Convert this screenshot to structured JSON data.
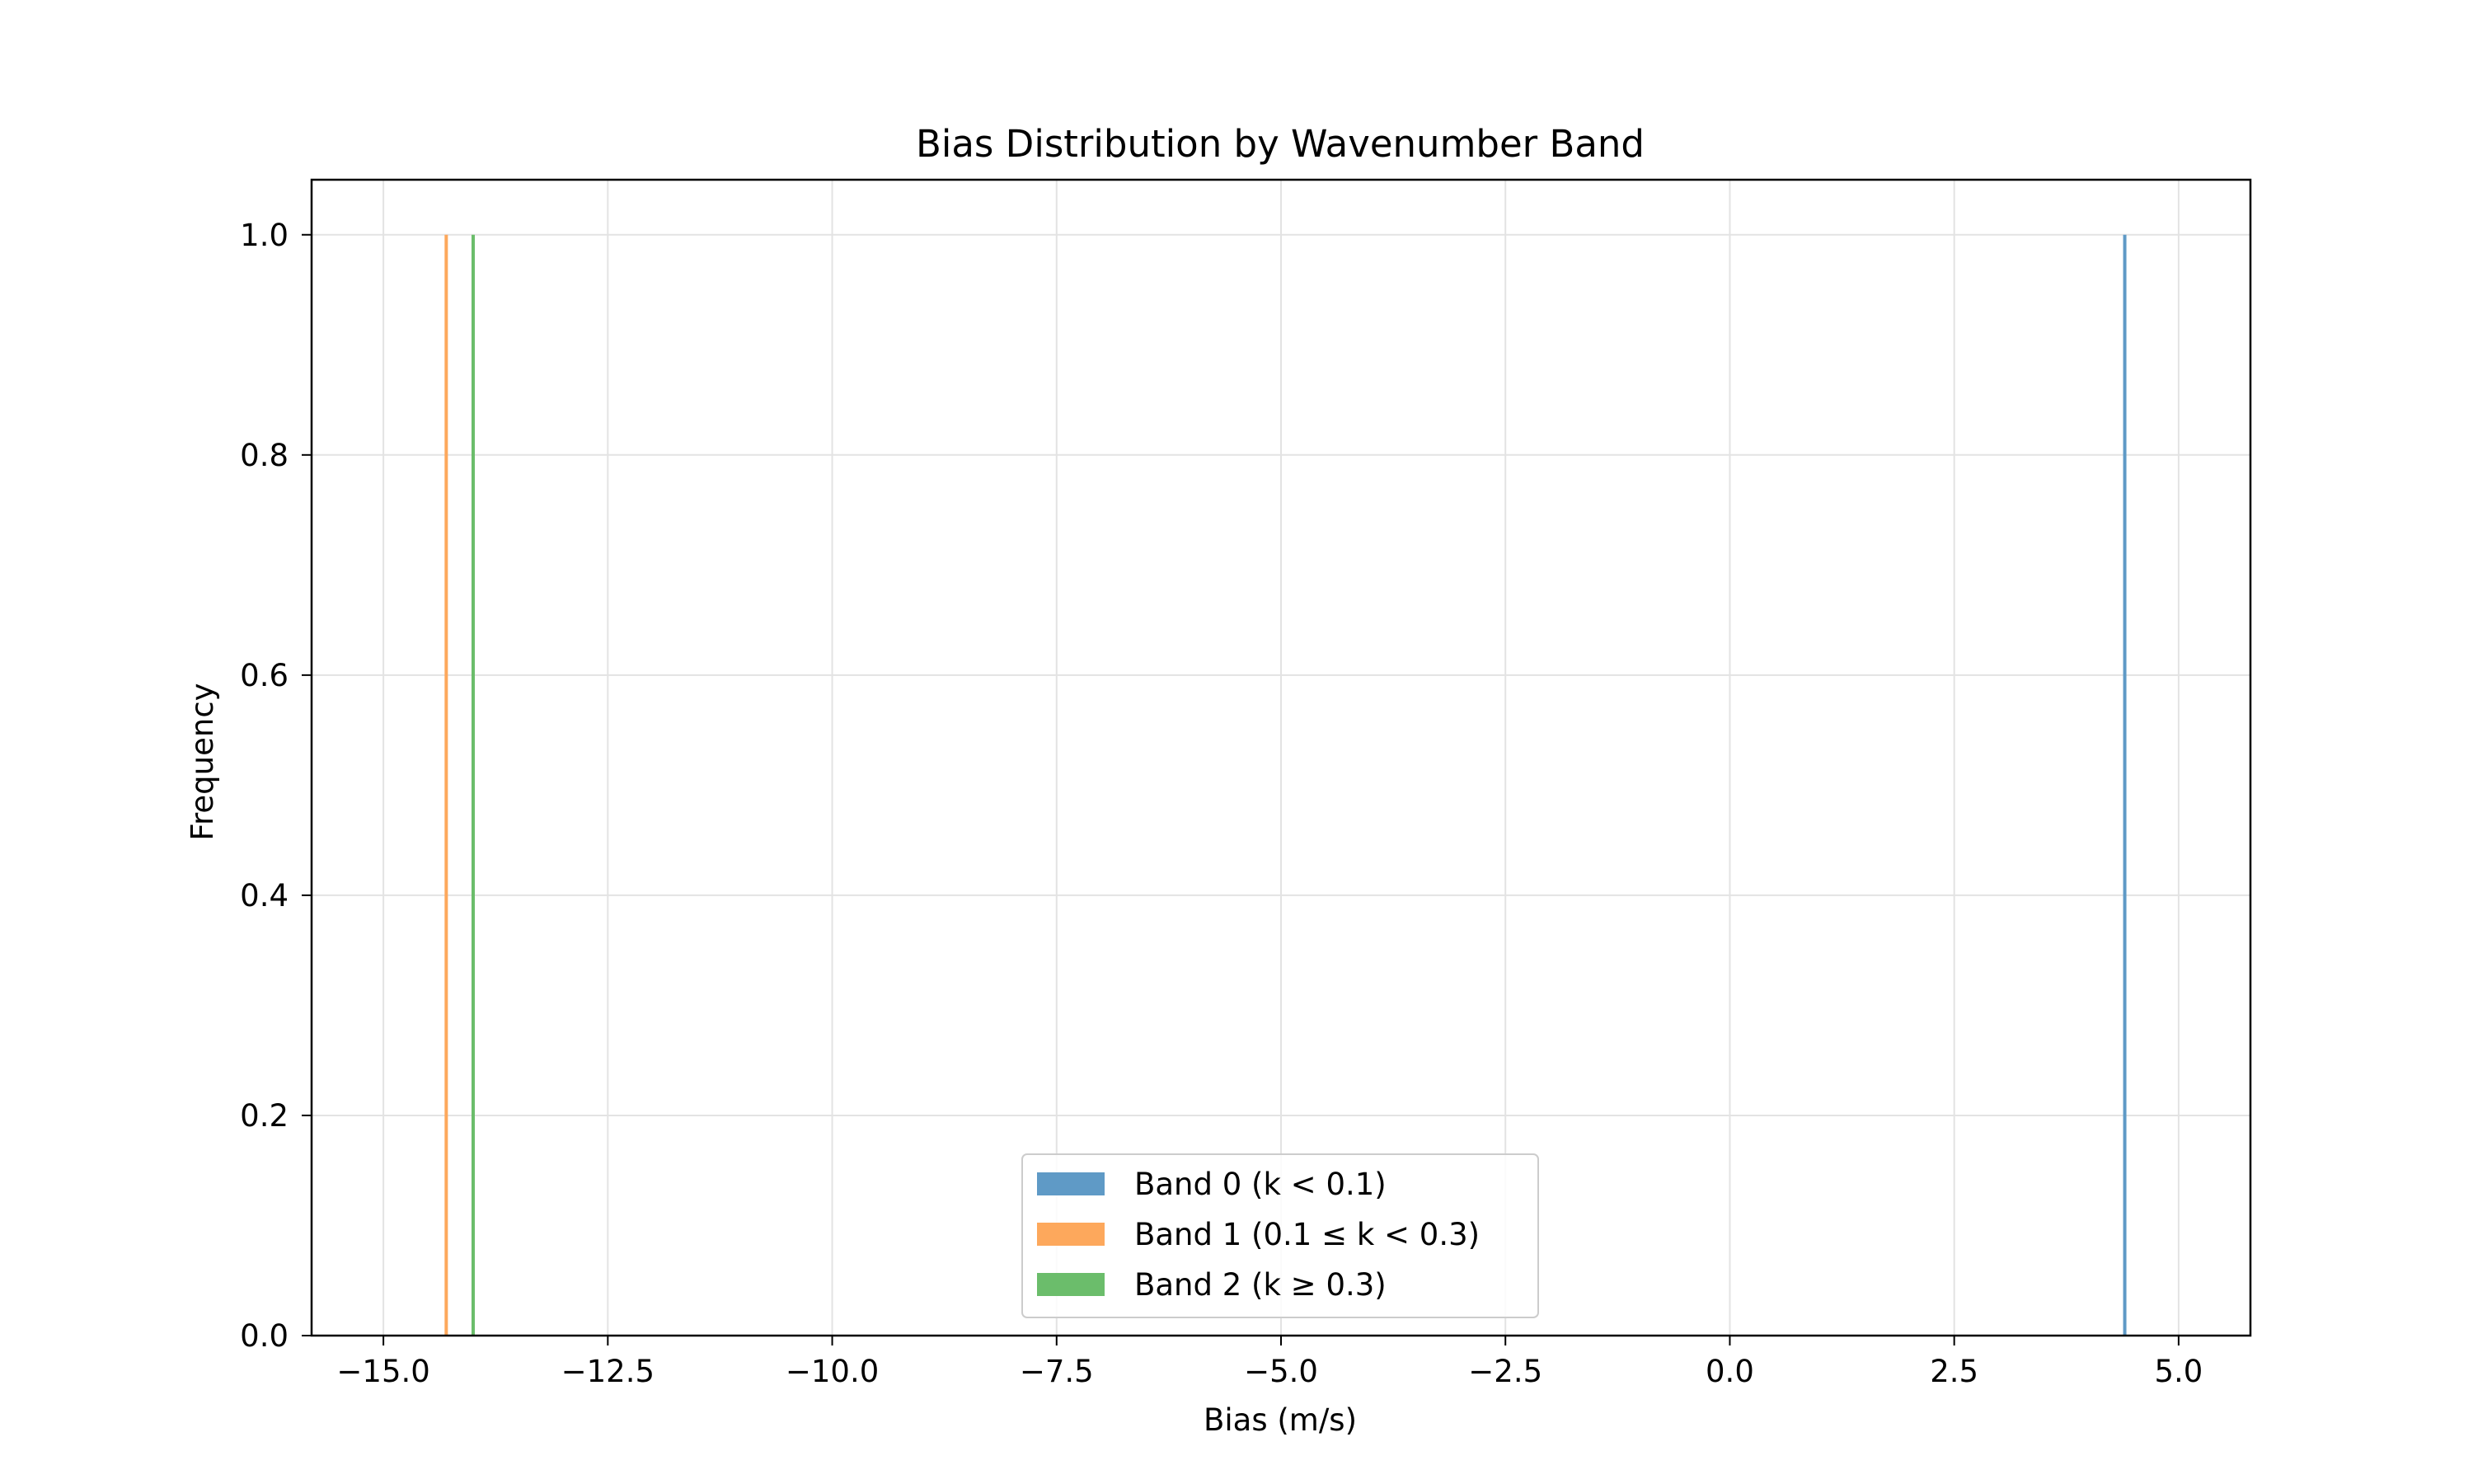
{
  "chart_data": {
    "type": "bar",
    "title": "Bias Distribution by Wavenumber Band",
    "xlabel": "Bias (m/s)",
    "ylabel": "Frequency",
    "xlim": [
      -15.8,
      5.8
    ],
    "ylim": [
      0.0,
      1.05
    ],
    "xticks": [
      {
        "value": -15.0,
        "label": "−15.0"
      },
      {
        "value": -12.5,
        "label": "−12.5"
      },
      {
        "value": -10.0,
        "label": "−10.0"
      },
      {
        "value": -7.5,
        "label": "−7.5"
      },
      {
        "value": -5.0,
        "label": "−5.0"
      },
      {
        "value": -2.5,
        "label": "−2.5"
      },
      {
        "value": 0.0,
        "label": "0.0"
      },
      {
        "value": 2.5,
        "label": "2.5"
      },
      {
        "value": 5.0,
        "label": "5.0"
      }
    ],
    "yticks": [
      {
        "value": 0.0,
        "label": "0.0"
      },
      {
        "value": 0.2,
        "label": "0.2"
      },
      {
        "value": 0.4,
        "label": "0.4"
      },
      {
        "value": 0.6,
        "label": "0.6"
      },
      {
        "value": 0.8,
        "label": "0.8"
      },
      {
        "value": 1.0,
        "label": "1.0"
      }
    ],
    "grid": true,
    "legend_position": "bottom-center",
    "series": [
      {
        "name": "Band 0 (k < 0.1)",
        "color": "#5f9ac6",
        "bins": [
          {
            "x": 4.4,
            "count": 1
          }
        ]
      },
      {
        "name": "Band 1 (0.1 ≤ k < 0.3)",
        "color": "#fda85c",
        "bins": [
          {
            "x": -14.3,
            "count": 1
          }
        ]
      },
      {
        "name": "Band 2 (k ≥ 0.3)",
        "color": "#6bbd6b",
        "bins": [
          {
            "x": -14.0,
            "count": 1
          }
        ]
      }
    ]
  }
}
